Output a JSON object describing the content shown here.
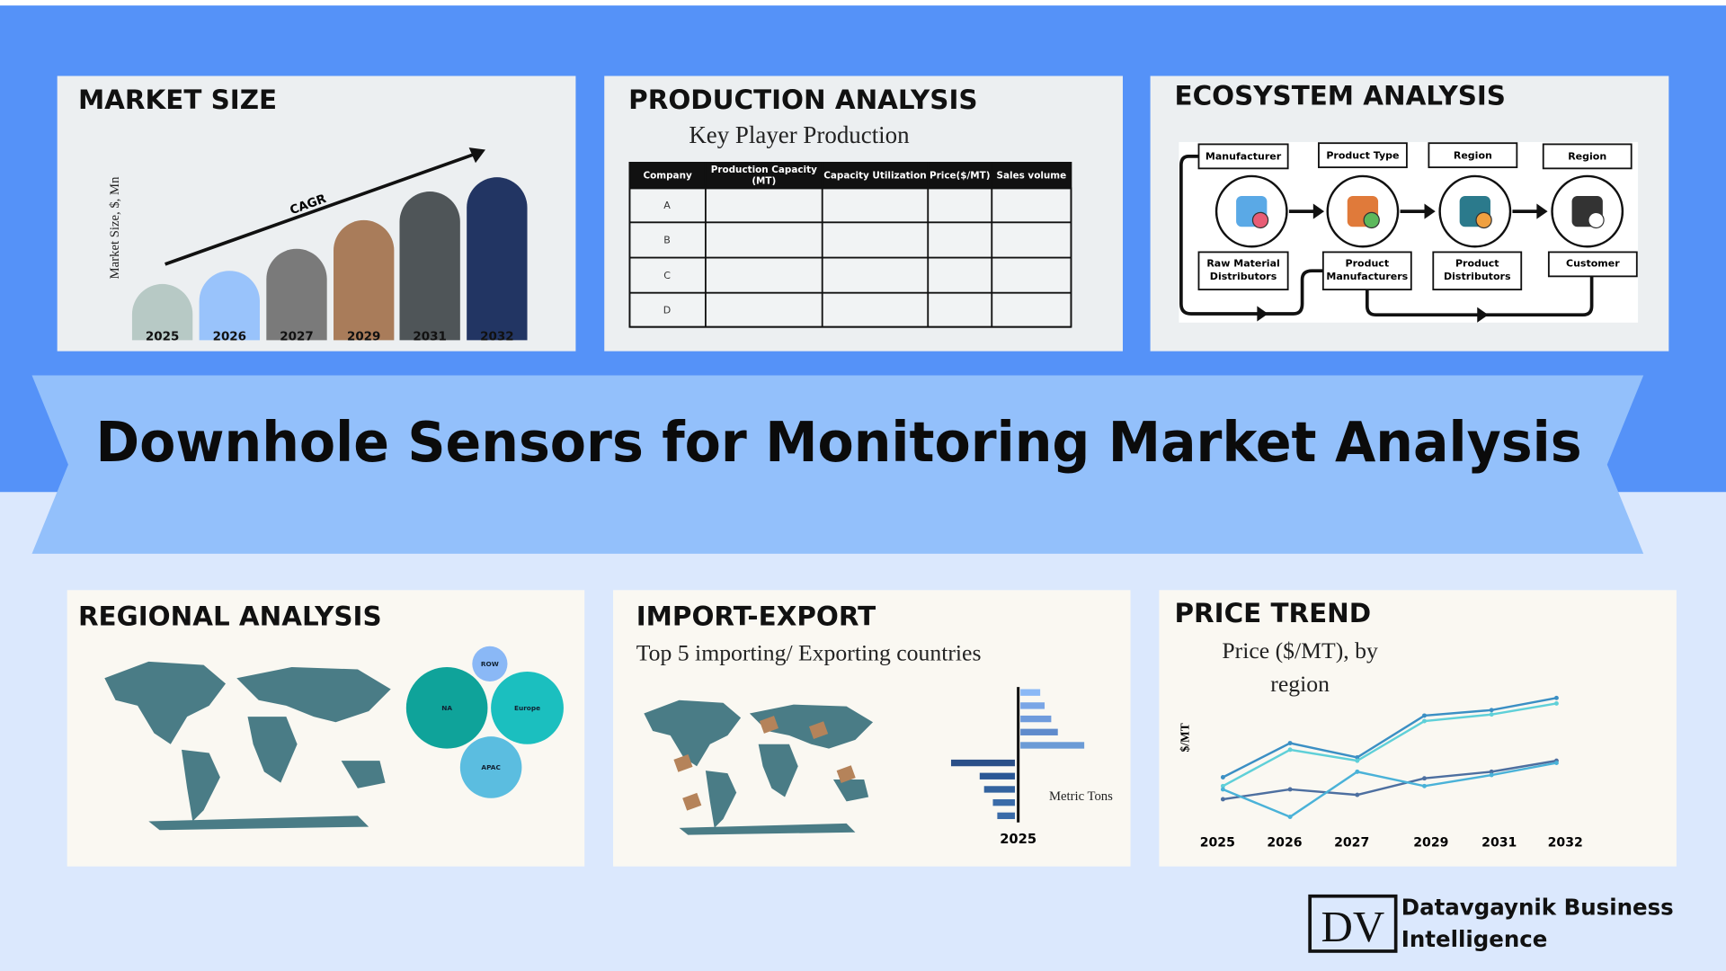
{
  "banner_title": "Downhole Sensors for Monitoring Market Analysis",
  "panels": {
    "market_size": {
      "title": "MARKET SIZE",
      "y_axis_label": "Market Size, $, Mn",
      "arrow_label": "CAGR",
      "years": [
        "2025",
        "2026",
        "2027",
        "2029",
        "2031",
        "2032"
      ]
    },
    "production_analysis": {
      "title": "PRODUCTION ANALYSIS",
      "subtitle": "Key Player Production",
      "table": {
        "header": [
          "Company",
          [
            "Production Capacity",
            "(MT)"
          ],
          "Capacity Utilization",
          "Price($/MT)",
          "Sales volume"
        ],
        "rows": [
          "A",
          "B",
          "C",
          "D"
        ]
      }
    },
    "ecosystem_analysis": {
      "title": "ECOSYSTEM ANALYSIS",
      "top_labels": [
        "Manufacturer",
        "Product Type",
        "Region",
        "Region"
      ],
      "bottom_labels": [
        [
          "Raw Material",
          "Distributors"
        ],
        [
          "Product",
          "Manufacturers"
        ],
        [
          "Product",
          "Distributors"
        ],
        [
          "Customer"
        ]
      ]
    },
    "regional_analysis": {
      "title": "REGIONAL ANALYSIS",
      "bubbles": [
        "ROW",
        "NA",
        "Europe",
        "APAC"
      ]
    },
    "import_export": {
      "title": "IMPORT-EXPORT",
      "subtitle": "Top 5 importing/ Exporting countries",
      "unit_label": "Metric Tons",
      "year": "2025"
    },
    "price_trend": {
      "title": "PRICE TREND",
      "subtitle_lines": [
        "Price ($/MT), by",
        "region"
      ],
      "y_axis_label": "$/MT",
      "years": [
        "2025",
        "2026",
        "2027",
        "2029",
        "2031",
        "2032"
      ]
    }
  },
  "logo": {
    "mark": "DV",
    "name_lines": [
      "Datavgaynik Business",
      "Intelligence"
    ]
  }
}
